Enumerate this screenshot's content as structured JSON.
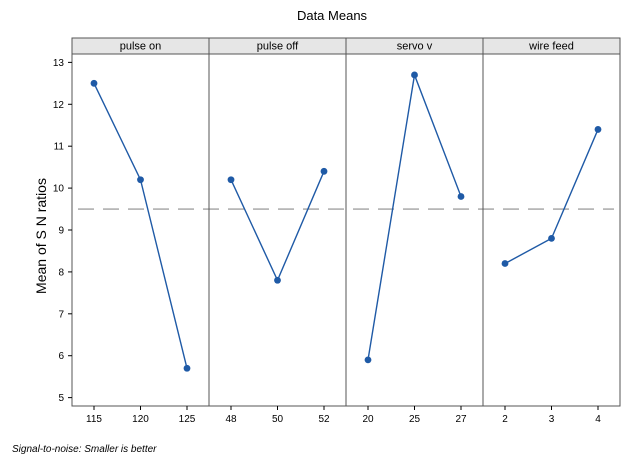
{
  "chart_data": {
    "type": "line",
    "title": "Data Means",
    "ylabel": "Mean of S N  ratios",
    "ylim": [
      4.8,
      13.2
    ],
    "yticks": [
      5,
      6,
      7,
      8,
      9,
      10,
      11,
      12,
      13
    ],
    "reference_line": 9.5,
    "panels": [
      {
        "name": "pulse on",
        "categories": [
          "115",
          "120",
          "125"
        ],
        "values": [
          12.5,
          10.2,
          5.7
        ]
      },
      {
        "name": "pulse off",
        "categories": [
          "48",
          "50",
          "52"
        ],
        "values": [
          10.2,
          7.8,
          10.4
        ]
      },
      {
        "name": "servo v",
        "categories": [
          "20",
          "25",
          "27"
        ],
        "values": [
          5.9,
          12.7,
          9.8
        ]
      },
      {
        "name": "wire feed",
        "categories": [
          "2",
          "3",
          "4"
        ],
        "values": [
          8.2,
          8.8,
          11.4
        ]
      }
    ],
    "footnote": "Signal-to-noise: Smaller is better",
    "colors": {
      "line": "#1f5aa6",
      "marker": "#1f5aa6",
      "reference": "#8c8c8c",
      "panel_header": "#e6e6e6",
      "plot_bg": "#ffffff",
      "frame": "#555555"
    }
  }
}
